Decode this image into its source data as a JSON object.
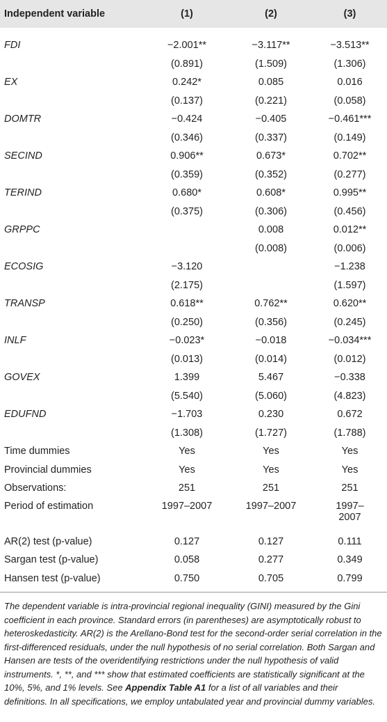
{
  "table": {
    "header": [
      "Independent variable",
      "(1)",
      "(2)",
      "(3)"
    ],
    "rows": [
      [
        "FDI",
        "−2.001**",
        "−3.117**",
        "−3.513**"
      ],
      [
        null,
        "(0.891)",
        "(1.509)",
        "(1.306)"
      ],
      [
        "EX",
        "0.242*",
        "0.085",
        "0.016"
      ],
      [
        null,
        "(0.137)",
        "(0.221)",
        "(0.058)"
      ],
      [
        "DOMTR",
        "−0.424",
        "−0.405",
        "−0.461***"
      ],
      [
        null,
        "(0.346)",
        "(0.337)",
        "(0.149)"
      ],
      [
        "SECIND",
        "0.906**",
        "0.673*",
        "0.702**"
      ],
      [
        null,
        "(0.359)",
        "(0.352)",
        "(0.277)"
      ],
      [
        "TERIND",
        "0.680*",
        "0.608*",
        "0.995**"
      ],
      [
        null,
        "(0.375)",
        "(0.306)",
        "(0.456)"
      ],
      [
        "GRPPC",
        null,
        "0.008",
        "0.012**"
      ],
      [
        null,
        null,
        "(0.008)",
        "(0.006)"
      ],
      [
        "ECOSIG",
        "−3.120",
        null,
        "−1.238"
      ],
      [
        null,
        "(2.175)",
        null,
        "(1.597)"
      ],
      [
        "TRANSP",
        "0.618**",
        "0.762**",
        "0.620**"
      ],
      [
        null,
        "(0.250)",
        "(0.356)",
        "(0.245)"
      ],
      [
        "INLF",
        "−0.023*",
        "−0.018",
        "−0.034***"
      ],
      [
        null,
        "(0.013)",
        "(0.014)",
        "(0.012)"
      ],
      [
        "GOVEX",
        "1.399",
        "5.467",
        "−0.338"
      ],
      [
        null,
        "(5.540)",
        "(5.060)",
        "(4.823)"
      ],
      [
        "EDUFND",
        "−1.703",
        "0.230",
        "0.672"
      ],
      [
        null,
        "(1.308)",
        "(1.727)",
        "(1.788)"
      ],
      [
        "Time dummies",
        "Yes",
        "Yes",
        "Yes"
      ],
      [
        "Provincial dummies",
        "Yes",
        "Yes",
        "Yes"
      ],
      [
        "Observations:",
        "251",
        "251",
        "251"
      ],
      [
        "Period of estimation",
        "1997–2007",
        "1997–2007",
        "1997–2007"
      ],
      [
        "AR(2) test (p-value)",
        "0.127",
        "0.127",
        "0.111"
      ],
      [
        "Sargan test (p-value)",
        "0.058",
        "0.277",
        "0.349"
      ],
      [
        "Hansen test (p-value)",
        "0.750",
        "0.705",
        "0.799"
      ]
    ],
    "footnote": [
      "The dependent variable is intra-provincial regional inequality (GINI) measured by the Gini coefficient in each province. Standard errors (in parentheses) are asymptotically robust to heteroskedasticity. AR(2) is the Arellano-Bond test for the second-order serial correlation in the first-differenced residuals, under the null hypothesis of no serial correlation. Both Sargan and Hansen are tests of the overidentifying restrictions under the null hypothesis of valid instruments. *, **, and *** show that estimated coefficients are statistically significant at the 10%, 5%, and 1% levels. See ",
      "Appendix Table A1",
      " for a list of all variables and their definitions. In all specifications, we employ untabulated year and provincial dummy variables."
    ]
  }
}
